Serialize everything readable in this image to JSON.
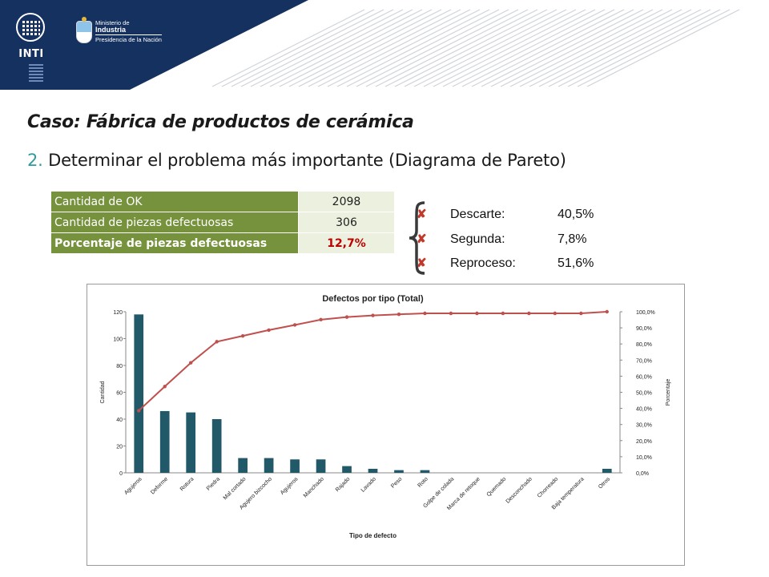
{
  "header": {
    "inti_logo_text": "INTI",
    "ministry_line1": "Ministerio de",
    "ministry_line2": "Industria",
    "ministry_line3": "Presidencia de la Nación"
  },
  "slide": {
    "title": "Caso: Fábrica de productos de cerámica",
    "subtitle_number": "2.",
    "subtitle_text": " Determinar el problema más importante (Diagrama de Pareto)"
  },
  "summary_table": [
    {
      "label": "Cantidad de OK",
      "value": "2098"
    },
    {
      "label": "Cantidad de piezas defectuosas",
      "value": "306"
    },
    {
      "label": "Porcentaje de piezas defectuosas",
      "value": "12,7%"
    }
  ],
  "reasons": [
    {
      "mark": "✘",
      "label": "Descarte:",
      "pct": "40,5%"
    },
    {
      "mark": "✘",
      "label": "Segunda:",
      "pct": "7,8%"
    },
    {
      "mark": "✘",
      "label": "Reproceso:",
      "pct": "51,6%"
    }
  ],
  "colors": {
    "banner": "#15315f",
    "bar": "#215968",
    "line": "#c0504d",
    "table_label_bg": "#76923c",
    "table_value_bg": "#ebf1de"
  },
  "chart_data": {
    "type": "bar",
    "title": "Defectos por tipo (Total)",
    "xlabel": "Tipo de defecto",
    "ylabel": "Cantidad",
    "y2label": "Porcentaje",
    "ylim": [
      0,
      120
    ],
    "y2lim": [
      0,
      100
    ],
    "yticks": [
      "0",
      "20",
      "40",
      "60",
      "80",
      "100",
      "120"
    ],
    "y2ticks": [
      "0,0%",
      "10,0%",
      "20,0%",
      "30,0%",
      "40,0%",
      "50,0%",
      "60,0%",
      "70,0%",
      "80,0%",
      "90,0%",
      "100,0%"
    ],
    "categories": [
      "Agujeros",
      "Deforme",
      "Rotura",
      "Piedra",
      "Mal cortado",
      "Agujero bizcocho",
      "Agujeros",
      "Manchado",
      "Rajado",
      "Lavado",
      "Peso",
      "Roto",
      "Golpe de colada",
      "Marca de retoque",
      "Quemado",
      "Desconchado",
      "Chorreado",
      "Baja temperatura",
      "Otros"
    ],
    "series": [
      {
        "name": "Cantidad",
        "type": "bar",
        "values": [
          118,
          46,
          45,
          40,
          11,
          11,
          10,
          10,
          5,
          3,
          2,
          2,
          0,
          0,
          0,
          0,
          0,
          0,
          3
        ]
      },
      {
        "name": "Porcentaje",
        "type": "line",
        "axis": "right",
        "values": [
          38.6,
          53.6,
          68.3,
          81.4,
          85.0,
          88.6,
          91.8,
          95.1,
          96.7,
          97.7,
          98.4,
          99.0,
          99.0,
          99.0,
          99.0,
          99.0,
          99.0,
          99.0,
          100.0
        ]
      }
    ],
    "legend": "none",
    "grid": false
  }
}
